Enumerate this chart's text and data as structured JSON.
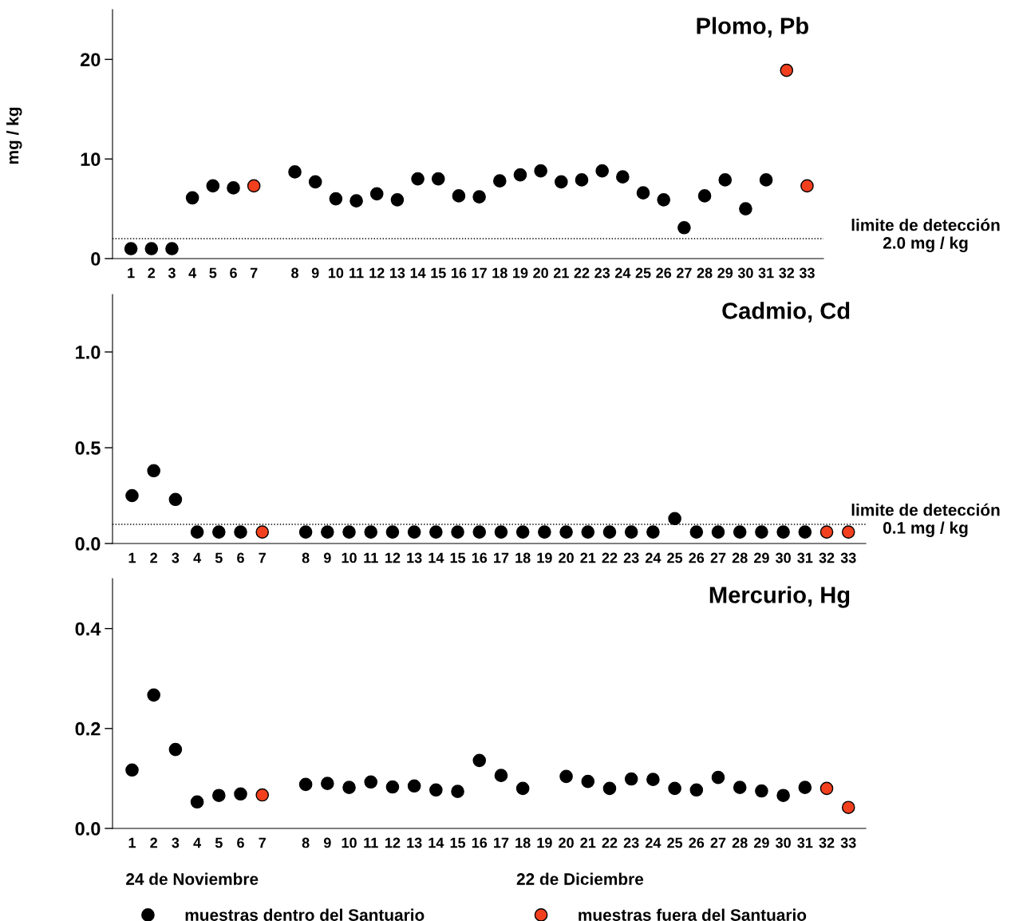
{
  "chart_data": [
    {
      "type": "scatter",
      "title": "Plomo, Pb",
      "ylabel": "mg / kg",
      "categories": [
        "1",
        "2",
        "3",
        "4",
        "5",
        "6",
        "7",
        null,
        "8",
        "9",
        "10",
        "11",
        "12",
        "13",
        "14",
        "15",
        "16",
        "17",
        "18",
        "19",
        "20",
        "21",
        "22",
        "23",
        "24",
        "25",
        "26",
        "27",
        "28",
        "29",
        "30",
        "31",
        "32",
        "33"
      ],
      "series": [
        {
          "color": "#000000",
          "values": [
            1.0,
            1.0,
            1.0,
            6.1,
            7.3,
            7.1,
            null,
            null,
            8.7,
            7.7,
            6.0,
            5.8,
            6.5,
            5.9,
            8.0,
            8.0,
            6.3,
            6.2,
            7.8,
            8.4,
            8.8,
            7.7,
            7.9,
            8.8,
            8.2,
            6.6,
            5.9,
            3.1,
            6.3,
            7.9,
            5.0,
            7.9,
            null,
            null
          ]
        },
        {
          "color": "#f2401e",
          "values": [
            null,
            null,
            null,
            null,
            null,
            null,
            7.3,
            null,
            null,
            null,
            null,
            null,
            null,
            null,
            null,
            null,
            null,
            null,
            null,
            null,
            null,
            null,
            null,
            null,
            null,
            null,
            null,
            null,
            null,
            null,
            null,
            null,
            18.9,
            7.3
          ]
        }
      ],
      "ylim": [
        0,
        25
      ],
      "yticks": [
        0,
        10,
        20
      ],
      "ref_lines": [
        {
          "axis": "y",
          "value": 2.0,
          "label": "limite de detección\n2.0 mg / kg",
          "line_style": "dotted",
          "color": "#000000"
        }
      ],
      "marker": "circle",
      "grid": false,
      "legend": false
    },
    {
      "type": "scatter",
      "title": "Cadmio, Cd",
      "categories": [
        "1",
        "2",
        "3",
        "4",
        "5",
        "6",
        "7",
        null,
        "8",
        "9",
        "10",
        "11",
        "12",
        "13",
        "14",
        "15",
        "16",
        "17",
        "18",
        "19",
        "20",
        "21",
        "22",
        "23",
        "24",
        "25",
        "26",
        "27",
        "28",
        "29",
        "30",
        "31",
        "32",
        "33"
      ],
      "series": [
        {
          "color": "#000000",
          "values": [
            0.25,
            0.38,
            0.23,
            0.06,
            0.06,
            0.06,
            null,
            null,
            0.06,
            0.06,
            0.06,
            0.06,
            0.06,
            0.06,
            0.06,
            0.06,
            0.06,
            0.06,
            0.06,
            0.06,
            0.06,
            0.06,
            0.06,
            0.06,
            0.06,
            0.13,
            0.06,
            0.06,
            0.06,
            0.06,
            0.06,
            0.06,
            null,
            null
          ]
        },
        {
          "color": "#f2401e",
          "values": [
            null,
            null,
            null,
            null,
            null,
            null,
            0.06,
            null,
            null,
            null,
            null,
            null,
            null,
            null,
            null,
            null,
            null,
            null,
            null,
            null,
            null,
            null,
            null,
            null,
            null,
            null,
            null,
            null,
            null,
            null,
            null,
            null,
            0.06,
            0.06
          ]
        }
      ],
      "ylim": [
        0,
        1.3
      ],
      "yticks": [
        {
          "value": 0,
          "label": "0.0"
        },
        {
          "value": 0.5,
          "label": "0.5"
        },
        {
          "value": 1,
          "label": "1.0"
        }
      ],
      "ref_lines": [
        {
          "axis": "y",
          "value": 0.1,
          "label": "limite de detección\n0.1 mg / kg",
          "line_style": "dotted",
          "color": "#000000"
        }
      ],
      "marker": "circle",
      "grid": false,
      "legend": false
    },
    {
      "type": "scatter",
      "title": "Mercurio, Hg",
      "categories": [
        "1",
        "2",
        "3",
        "4",
        "5",
        "6",
        "7",
        null,
        "8",
        "9",
        "10",
        "11",
        "12",
        "13",
        "14",
        "15",
        "16",
        "17",
        "18",
        "19",
        "20",
        "21",
        "22",
        "23",
        "24",
        "25",
        "26",
        "27",
        "28",
        "29",
        "30",
        "31",
        "32",
        "33"
      ],
      "series": [
        {
          "name": "muestras dentro del Santuario",
          "color": "#000000",
          "values": [
            0.117,
            0.267,
            0.158,
            0.053,
            0.066,
            0.069,
            null,
            null,
            0.088,
            0.09,
            0.082,
            0.093,
            0.083,
            0.085,
            0.077,
            0.074,
            0.136,
            0.106,
            0.08,
            null,
            0.104,
            0.094,
            0.08,
            0.099,
            0.098,
            0.08,
            0.077,
            0.102,
            0.082,
            0.075,
            0.066,
            0.082,
            null,
            null
          ]
        },
        {
          "name": "muestras fuera del Santuario",
          "color": "#f2401e",
          "values": [
            null,
            null,
            null,
            null,
            null,
            null,
            0.067,
            null,
            null,
            null,
            null,
            null,
            null,
            null,
            null,
            null,
            null,
            null,
            null,
            null,
            null,
            null,
            null,
            null,
            null,
            null,
            null,
            null,
            null,
            null,
            null,
            null,
            0.08,
            0.042
          ]
        }
      ],
      "ylim": [
        0,
        0.5
      ],
      "yticks": [
        {
          "value": 0,
          "label": "0.0"
        },
        {
          "value": 0.2,
          "label": "0.2"
        },
        {
          "value": 0.4,
          "label": "0.4"
        }
      ],
      "annotations": [
        "24 de Noviembre",
        "22 de Diciembre"
      ],
      "marker": "circle",
      "grid": false,
      "legend": "bottom"
    }
  ]
}
